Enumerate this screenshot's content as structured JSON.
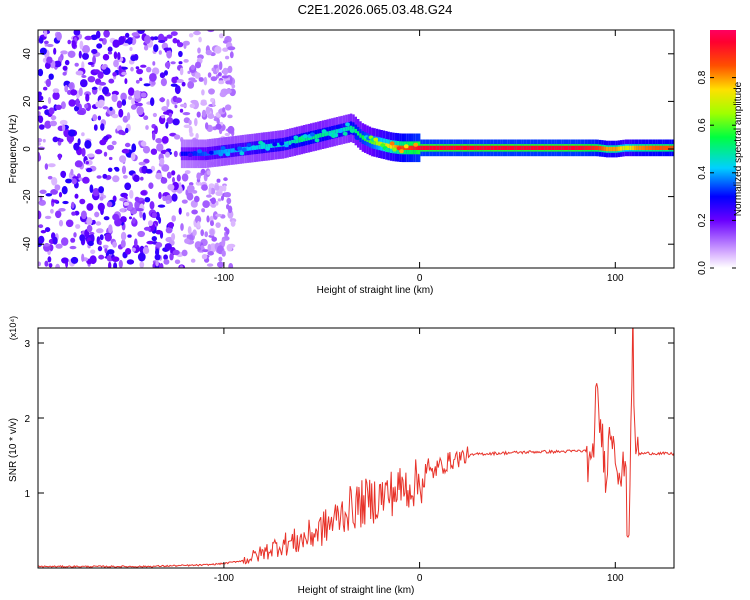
{
  "title": "C2E1.2026.065.03.48.G24",
  "chart_data": [
    {
      "type": "heatmap",
      "name": "spectrogram",
      "xlabel": "Height of straight line (km)",
      "ylabel": "Frequency (Hz)",
      "xlim": [
        -195,
        130
      ],
      "ylim": [
        -50,
        50
      ],
      "x_ticks": [
        -100,
        0,
        100
      ],
      "x_tick_labels": [
        "-100",
        "0",
        "100"
      ],
      "y_ticks": [
        -40,
        -20,
        0,
        20,
        40
      ],
      "y_tick_labels": [
        "-40",
        "-20",
        "0",
        "20",
        "40"
      ],
      "noise_region_x": [
        -195,
        -105
      ],
      "ridge": {
        "x": [
          -120,
          -110,
          -100,
          -90,
          -80,
          -70,
          -60,
          -50,
          -40,
          -35,
          -30,
          -25,
          -20,
          -15,
          -10,
          -5,
          0,
          20,
          40,
          60,
          80,
          90,
          95,
          100,
          105,
          110,
          120,
          130
        ],
        "freq": [
          -2,
          -2,
          -1,
          0,
          1,
          2,
          4,
          6,
          8,
          9,
          5,
          3,
          2,
          1,
          0.5,
          0.5,
          0.5,
          0.5,
          0.5,
          0.5,
          0.5,
          0.5,
          0,
          0,
          0.5,
          0.5,
          0.5,
          0.5
        ],
        "amplitude": [
          0.3,
          0.35,
          0.4,
          0.4,
          0.45,
          0.45,
          0.5,
          0.5,
          0.45,
          0.5,
          0.55,
          0.6,
          0.7,
          0.75,
          0.85,
          0.9,
          0.95,
          0.95,
          0.95,
          0.95,
          0.95,
          0.9,
          0.8,
          0.8,
          0.7,
          0.8,
          0.85,
          0.85
        ]
      },
      "colorbar": {
        "label": "Normalized spectral amplitude",
        "range": [
          0,
          1
        ],
        "ticks": [
          0.0,
          0.2,
          0.4,
          0.6,
          0.8
        ],
        "tick_labels": [
          "0.0",
          "0.2",
          "0.4",
          "0.6",
          "0.8"
        ]
      }
    },
    {
      "type": "line",
      "name": "snr",
      "xlabel": "Height of straight line (km)",
      "ylabel": "SNR (10 * v/v)",
      "multiplier_label": "(x10⁴)",
      "xlim": [
        -195,
        130
      ],
      "ylim": [
        0,
        3.2
      ],
      "x_ticks": [
        -100,
        0,
        100
      ],
      "x_tick_labels": [
        "-100",
        "0",
        "100"
      ],
      "y_ticks": [
        1,
        2,
        3
      ],
      "y_tick_labels": [
        "1",
        "2",
        "3"
      ],
      "color": "#e8332a",
      "series": [
        {
          "name": "SNR",
          "x": [
            -195,
            -140,
            -110,
            -100,
            -90,
            -85,
            -80,
            -75,
            -70,
            -65,
            -60,
            -55,
            -50,
            -45,
            -40,
            -35,
            -30,
            -25,
            -20,
            -15,
            -10,
            -5,
            0,
            5,
            10,
            15,
            20,
            30,
            40,
            50,
            60,
            70,
            80,
            85,
            88,
            90,
            93,
            95,
            98,
            100,
            103,
            105,
            106,
            107,
            108,
            109,
            110,
            112,
            115,
            120,
            130
          ],
          "values": [
            0.02,
            0.02,
            0.04,
            0.06,
            0.1,
            0.15,
            0.2,
            0.27,
            0.32,
            0.34,
            0.38,
            0.45,
            0.52,
            0.6,
            0.72,
            0.8,
            0.85,
            0.9,
            0.95,
            1.0,
            1.05,
            1.1,
            1.15,
            1.25,
            1.35,
            1.42,
            1.47,
            1.52,
            1.53,
            1.54,
            1.55,
            1.55,
            1.56,
            1.56,
            1.2,
            2.3,
            1.8,
            1.3,
            1.9,
            1.6,
            1.2,
            1.4,
            0.7,
            0.4,
            2.1,
            3.2,
            1.6,
            1.52,
            1.53,
            1.53,
            1.52
          ]
        }
      ]
    }
  ]
}
